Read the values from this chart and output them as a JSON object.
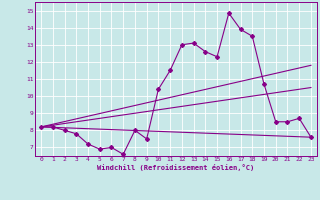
{
  "xlabel": "Windchill (Refroidissement éolien,°C)",
  "xlim": [
    -0.5,
    23.5
  ],
  "ylim": [
    6.5,
    15.5
  ],
  "xticks": [
    0,
    1,
    2,
    3,
    4,
    5,
    6,
    7,
    8,
    9,
    10,
    11,
    12,
    13,
    14,
    15,
    16,
    17,
    18,
    19,
    20,
    21,
    22,
    23
  ],
  "yticks": [
    7,
    8,
    9,
    10,
    11,
    12,
    13,
    14,
    15
  ],
  "bg_color": "#c8e8e8",
  "line_color": "#880088",
  "grid_color": "#ffffff",
  "line1": {
    "x": [
      0,
      1,
      2,
      3,
      4,
      5,
      6,
      7,
      8,
      9,
      10,
      11,
      12,
      13,
      14,
      15,
      16,
      17,
      18,
      19,
      20,
      21,
      22,
      23
    ],
    "y": [
      8.2,
      8.2,
      8.0,
      7.8,
      7.2,
      6.9,
      7.0,
      6.6,
      8.0,
      7.5,
      10.4,
      11.5,
      13.0,
      13.1,
      12.6,
      12.3,
      14.85,
      13.9,
      13.5,
      10.7,
      8.5,
      8.5,
      8.7,
      7.6
    ]
  },
  "line2": {
    "x": [
      0,
      23
    ],
    "y": [
      8.2,
      11.8
    ]
  },
  "line3": {
    "x": [
      0,
      23
    ],
    "y": [
      8.2,
      10.5
    ]
  },
  "line4": {
    "x": [
      0,
      23
    ],
    "y": [
      8.2,
      7.6
    ]
  }
}
